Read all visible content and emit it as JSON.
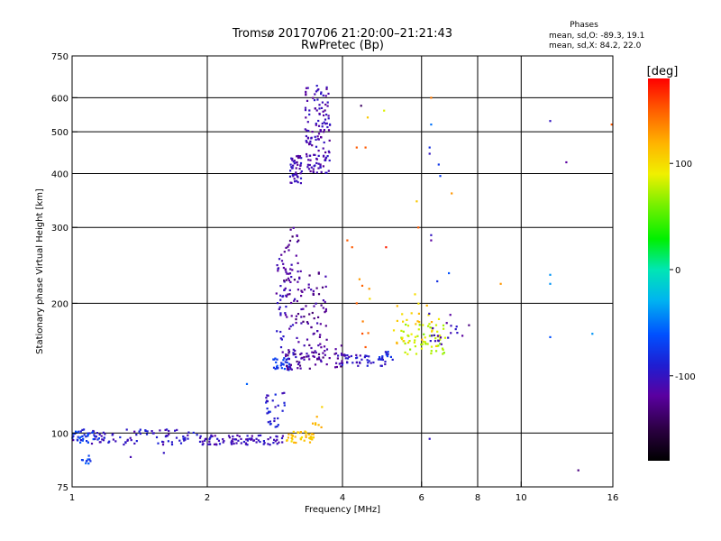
{
  "chart_data": {
    "type": "scatter",
    "title": "Tromsø 20170706 21:20:00–21:21:43",
    "subtitle": "RwPretec (Bp)",
    "stats": {
      "heading": "Phases",
      "line1": "mean, sd,O: -89.3, 19.1",
      "line2": "mean, sd,X:  84.2, 22.0"
    },
    "xlabel": "Frequency [MHz]",
    "ylabel": "Stationary phase Virtual Height [km]",
    "x_scale": "log",
    "y_scale": "log",
    "xlim": [
      1,
      16
    ],
    "ylim": [
      75,
      750
    ],
    "x_ticks": [
      1,
      2,
      4,
      6,
      8,
      10,
      16
    ],
    "x_tick_labels": [
      "1",
      "2",
      "4",
      "6",
      "8",
      "10",
      "16"
    ],
    "x_gridlines": [
      2,
      4,
      6,
      8,
      10
    ],
    "y_ticks": [
      75,
      100,
      200,
      300,
      400,
      500,
      600,
      750
    ],
    "y_tick_labels": [
      "75",
      "100",
      "200",
      "300",
      "400",
      "500",
      "600",
      "750"
    ],
    "y_gridlines": [
      100,
      200,
      300,
      400,
      500,
      600
    ],
    "grid": true,
    "colorbar": {
      "title": "[deg]",
      "range": [
        -180,
        180
      ],
      "ticks": [
        100,
        0,
        -100
      ],
      "tick_labels": [
        "100",
        "0",
        "-100"
      ]
    },
    "series": [
      {
        "clusters": [
          {
            "x": [
              1.0,
              1.9
            ],
            "y": [
              94,
              102
            ],
            "phase": -100,
            "count": 90
          },
          {
            "x": [
              1.0,
              1.15
            ],
            "y": [
              95,
              101
            ],
            "phase": -70,
            "count": 25
          },
          {
            "x": [
              1.9,
              2.95
            ],
            "y": [
              94,
              99
            ],
            "phase": -105,
            "count": 85
          },
          {
            "x": [
              3.0,
              3.45
            ],
            "y": [
              95,
              101
            ],
            "phase": 110,
            "count": 40
          },
          {
            "x": [
              1.05,
              1.12
            ],
            "y": [
              85,
              89
            ],
            "phase": -70,
            "count": 10
          },
          {
            "x": [
              2.7,
              3.0
            ],
            "y": [
              103,
              125
            ],
            "phase": -95,
            "count": 30
          },
          {
            "x": [
              2.8,
              3.05
            ],
            "y": [
              140,
              150
            ],
            "phase": -75,
            "count": 30
          },
          {
            "x": [
              2.85,
              3.15
            ],
            "y": [
              150,
              260
            ],
            "phase": -110,
            "count": 55
          },
          {
            "x": [
              3.15,
              3.7
            ],
            "y": [
              150,
              240
            ],
            "phase": -120,
            "count": 75
          },
          {
            "x": [
              3.0,
              4.1
            ],
            "y": [
              140,
              160
            ],
            "phase": -120,
            "count": 70
          },
          {
            "x": [
              3.9,
              5.0
            ],
            "y": [
              143,
              152
            ],
            "phase": -100,
            "count": 40
          },
          {
            "x": [
              4.8,
              5.2
            ],
            "y": [
              148,
              155
            ],
            "phase": -85,
            "count": 15
          },
          {
            "x": [
              2.95,
              3.2
            ],
            "y": [
              200,
              300
            ],
            "phase": -125,
            "count": 30
          },
          {
            "x": [
              3.05,
              3.25
            ],
            "y": [
              380,
              440
            ],
            "phase": -110,
            "count": 45
          },
          {
            "x": [
              3.3,
              3.75
            ],
            "y": [
              400,
              640
            ],
            "phase": -110,
            "count": 140
          },
          {
            "x": [
              5.4,
              6.8
            ],
            "y": [
              152,
              180
            ],
            "phase": 75,
            "count": 60
          },
          {
            "x": [
              5.2,
              6.6
            ],
            "y": [
              158,
              200
            ],
            "phase": 110,
            "count": 25
          },
          {
            "x": [
              6.2,
              7.4
            ],
            "y": [
              160,
              190
            ],
            "phase": -110,
            "count": 20
          },
          {
            "x": [
              3.4,
              3.6
            ],
            "y": [
              102,
              112
            ],
            "phase": 110,
            "count": 6
          },
          {
            "x": [
              4.3,
              4.6
            ],
            "y": [
              150,
              240
            ],
            "phase": 140,
            "count": 8
          }
        ],
        "points": [
          {
            "x": 2.45,
            "y": 130,
            "phase": -55
          },
          {
            "x": 4.4,
            "y": 575,
            "phase": -140
          },
          {
            "x": 4.55,
            "y": 540,
            "phase": 110
          },
          {
            "x": 4.95,
            "y": 560,
            "phase": 85
          },
          {
            "x": 4.5,
            "y": 460,
            "phase": 150
          },
          {
            "x": 4.3,
            "y": 460,
            "phase": 150
          },
          {
            "x": 6.25,
            "y": 460,
            "phase": -80
          },
          {
            "x": 6.25,
            "y": 445,
            "phase": -100
          },
          {
            "x": 6.55,
            "y": 420,
            "phase": -75
          },
          {
            "x": 6.3,
            "y": 520,
            "phase": -50
          },
          {
            "x": 6.3,
            "y": 600,
            "phase": 140
          },
          {
            "x": 6.6,
            "y": 395,
            "phase": -70
          },
          {
            "x": 5.85,
            "y": 345,
            "phase": 110
          },
          {
            "x": 7.0,
            "y": 360,
            "phase": 130
          },
          {
            "x": 5.9,
            "y": 300,
            "phase": 150
          },
          {
            "x": 6.3,
            "y": 288,
            "phase": -100
          },
          {
            "x": 6.3,
            "y": 280,
            "phase": -120
          },
          {
            "x": 4.1,
            "y": 280,
            "phase": 150
          },
          {
            "x": 4.2,
            "y": 270,
            "phase": 150
          },
          {
            "x": 5.0,
            "y": 270,
            "phase": 170
          },
          {
            "x": 6.9,
            "y": 235,
            "phase": -60
          },
          {
            "x": 6.5,
            "y": 225,
            "phase": -80
          },
          {
            "x": 9.0,
            "y": 222,
            "phase": 130
          },
          {
            "x": 11.6,
            "y": 233,
            "phase": -40
          },
          {
            "x": 11.6,
            "y": 222,
            "phase": -40
          },
          {
            "x": 11.6,
            "y": 530,
            "phase": -100
          },
          {
            "x": 12.6,
            "y": 425,
            "phase": -120
          },
          {
            "x": 15.9,
            "y": 520,
            "phase": 150
          },
          {
            "x": 11.6,
            "y": 167,
            "phase": -60
          },
          {
            "x": 14.4,
            "y": 170,
            "phase": -40
          },
          {
            "x": 7.65,
            "y": 178,
            "phase": -130
          },
          {
            "x": 6.25,
            "y": 97,
            "phase": -100
          },
          {
            "x": 1.35,
            "y": 88,
            "phase": -110
          },
          {
            "x": 1.6,
            "y": 90,
            "phase": -100
          },
          {
            "x": 13.4,
            "y": 82,
            "phase": -130
          },
          {
            "x": 3.6,
            "y": 115,
            "phase": 105
          },
          {
            "x": 4.6,
            "y": 205,
            "phase": 100
          },
          {
            "x": 5.8,
            "y": 210,
            "phase": 100
          }
        ]
      }
    ]
  }
}
